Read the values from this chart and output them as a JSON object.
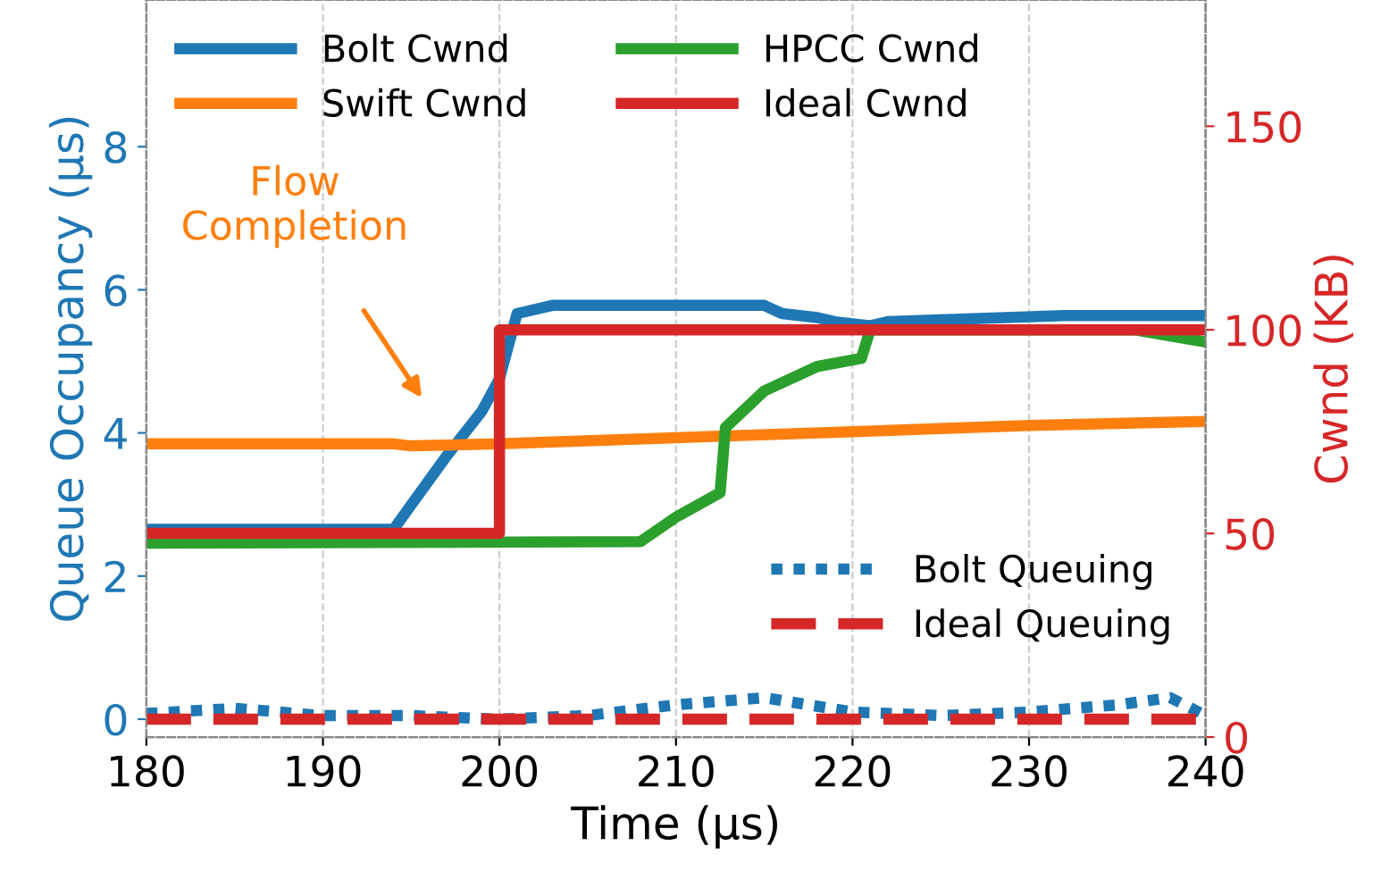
{
  "chart_data": {
    "type": "line",
    "xlabel": "Time (μs)",
    "ylabel": "Queue Occupancy (μs)",
    "y2label": "Cwnd (KB)",
    "xlim": [
      180,
      240
    ],
    "xticks": [
      180,
      190,
      200,
      210,
      220,
      230,
      240
    ],
    "ylim": [
      -0.25,
      10.05
    ],
    "yticks": [
      0,
      2,
      4,
      6,
      8
    ],
    "y2lim": [
      0,
      181
    ],
    "y2ticks": [
      0,
      50,
      100,
      150
    ],
    "grid": "x",
    "legend": "top",
    "line_style": "solid",
    "annotations": [
      "Flow\nCompletion"
    ],
    "series": [
      {
        "name": "Bolt Cwnd",
        "color": "#1f77b4",
        "axis": "y2",
        "x": [
          180,
          194,
          195,
          197,
          199,
          200,
          201,
          203,
          215,
          216,
          218,
          219,
          221,
          222,
          232,
          240
        ],
        "values": [
          51,
          51,
          57,
          69,
          80,
          88,
          104,
          106,
          106,
          104,
          103,
          102,
          101,
          102,
          103.5,
          103.5
        ]
      },
      {
        "name": "Swift Cwnd",
        "color": "#ff7f0e",
        "axis": "y2",
        "x": [
          180,
          194,
          195,
          200,
          210,
          220,
          230,
          240
        ],
        "values": [
          72,
          72,
          71.5,
          72,
          73.5,
          75,
          76.5,
          77.5
        ]
      },
      {
        "name": "HPCC Cwnd",
        "color": "#2ca02c",
        "axis": "y2",
        "x": [
          180,
          208,
          210,
          212.5,
          212.8,
          215,
          218,
          220.5,
          221,
          236,
          240
        ],
        "values": [
          47.6,
          48,
          54,
          60,
          76,
          85,
          91,
          93,
          100,
          100,
          97
        ]
      },
      {
        "name": "Ideal Cwnd",
        "color": "#d62728",
        "axis": "y2",
        "type": "step",
        "x": [
          180,
          200,
          240
        ],
        "values": [
          50,
          100,
          100
        ]
      },
      {
        "name": "Bolt Queuing",
        "color": "#1f77b4",
        "line_style": "dotted",
        "x": [
          180,
          185,
          190,
          195,
          200,
          205,
          210,
          215,
          220,
          225,
          230,
          235,
          238,
          240
        ],
        "values": [
          0.08,
          0.15,
          0.05,
          0.05,
          0.0,
          0.05,
          0.2,
          0.3,
          0.1,
          0.05,
          0.1,
          0.2,
          0.3,
          0.05
        ]
      },
      {
        "name": "Ideal Queuing",
        "color": "#d62728",
        "line_style": "dashed",
        "x": [
          180,
          240
        ],
        "values": [
          0,
          0
        ]
      }
    ]
  }
}
